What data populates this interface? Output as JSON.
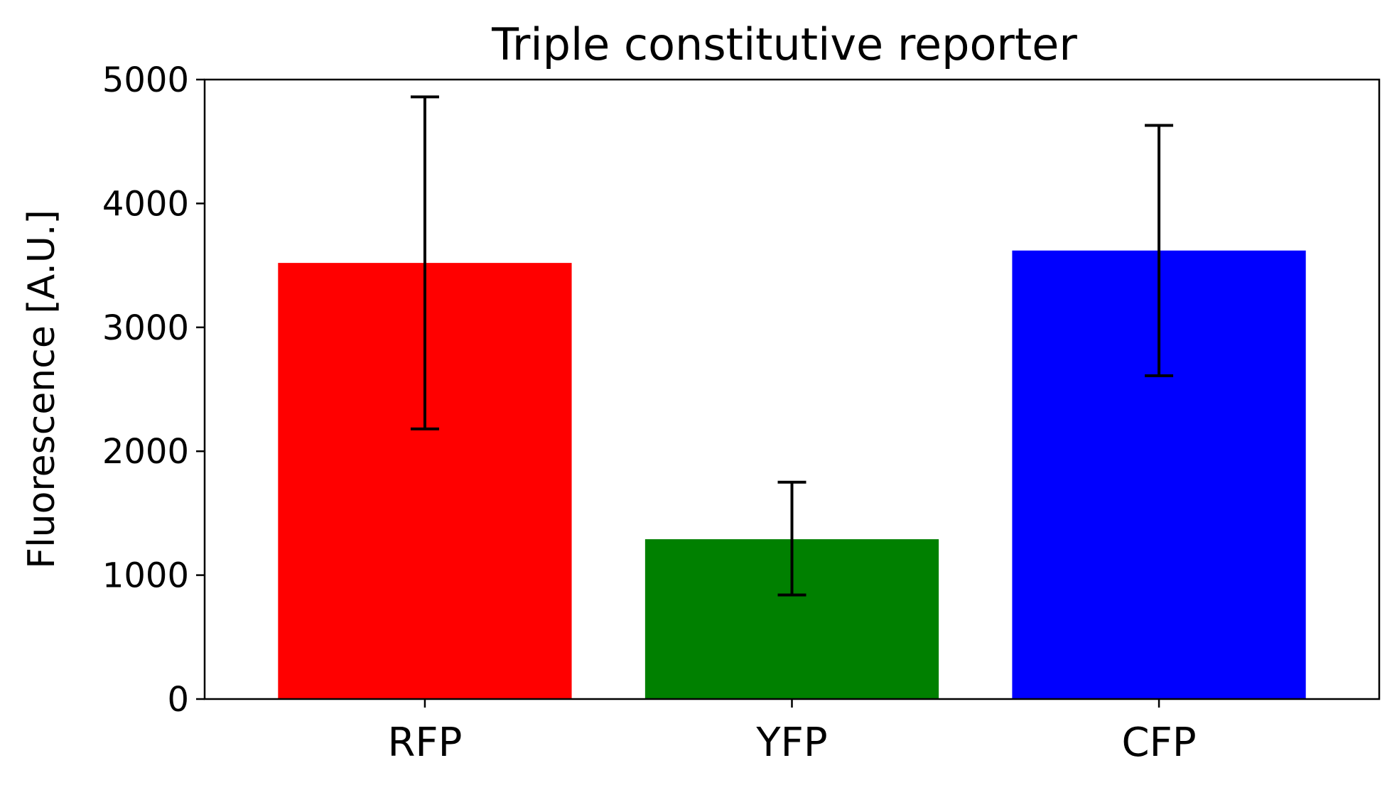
{
  "chart_data": {
    "type": "bar",
    "title": "Triple constitutive reporter",
    "xlabel": "",
    "ylabel": "Fluorescence [A.U.]",
    "categories": [
      "RFP",
      "YFP",
      "CFP"
    ],
    "values": [
      3520,
      1290,
      3620
    ],
    "error_lower": [
      2180,
      840,
      2610
    ],
    "error_upper": [
      4860,
      1750,
      4630
    ],
    "colors": [
      "#ff0000",
      "#008000",
      "#0000ff"
    ],
    "ylim": [
      0,
      5000
    ],
    "yticks": [
      0,
      1000,
      2000,
      3000,
      4000,
      5000
    ],
    "ytick_labels": [
      "0",
      "1000",
      "2000",
      "3000",
      "4000",
      "5000"
    ],
    "grid": false,
    "legend": "none"
  }
}
